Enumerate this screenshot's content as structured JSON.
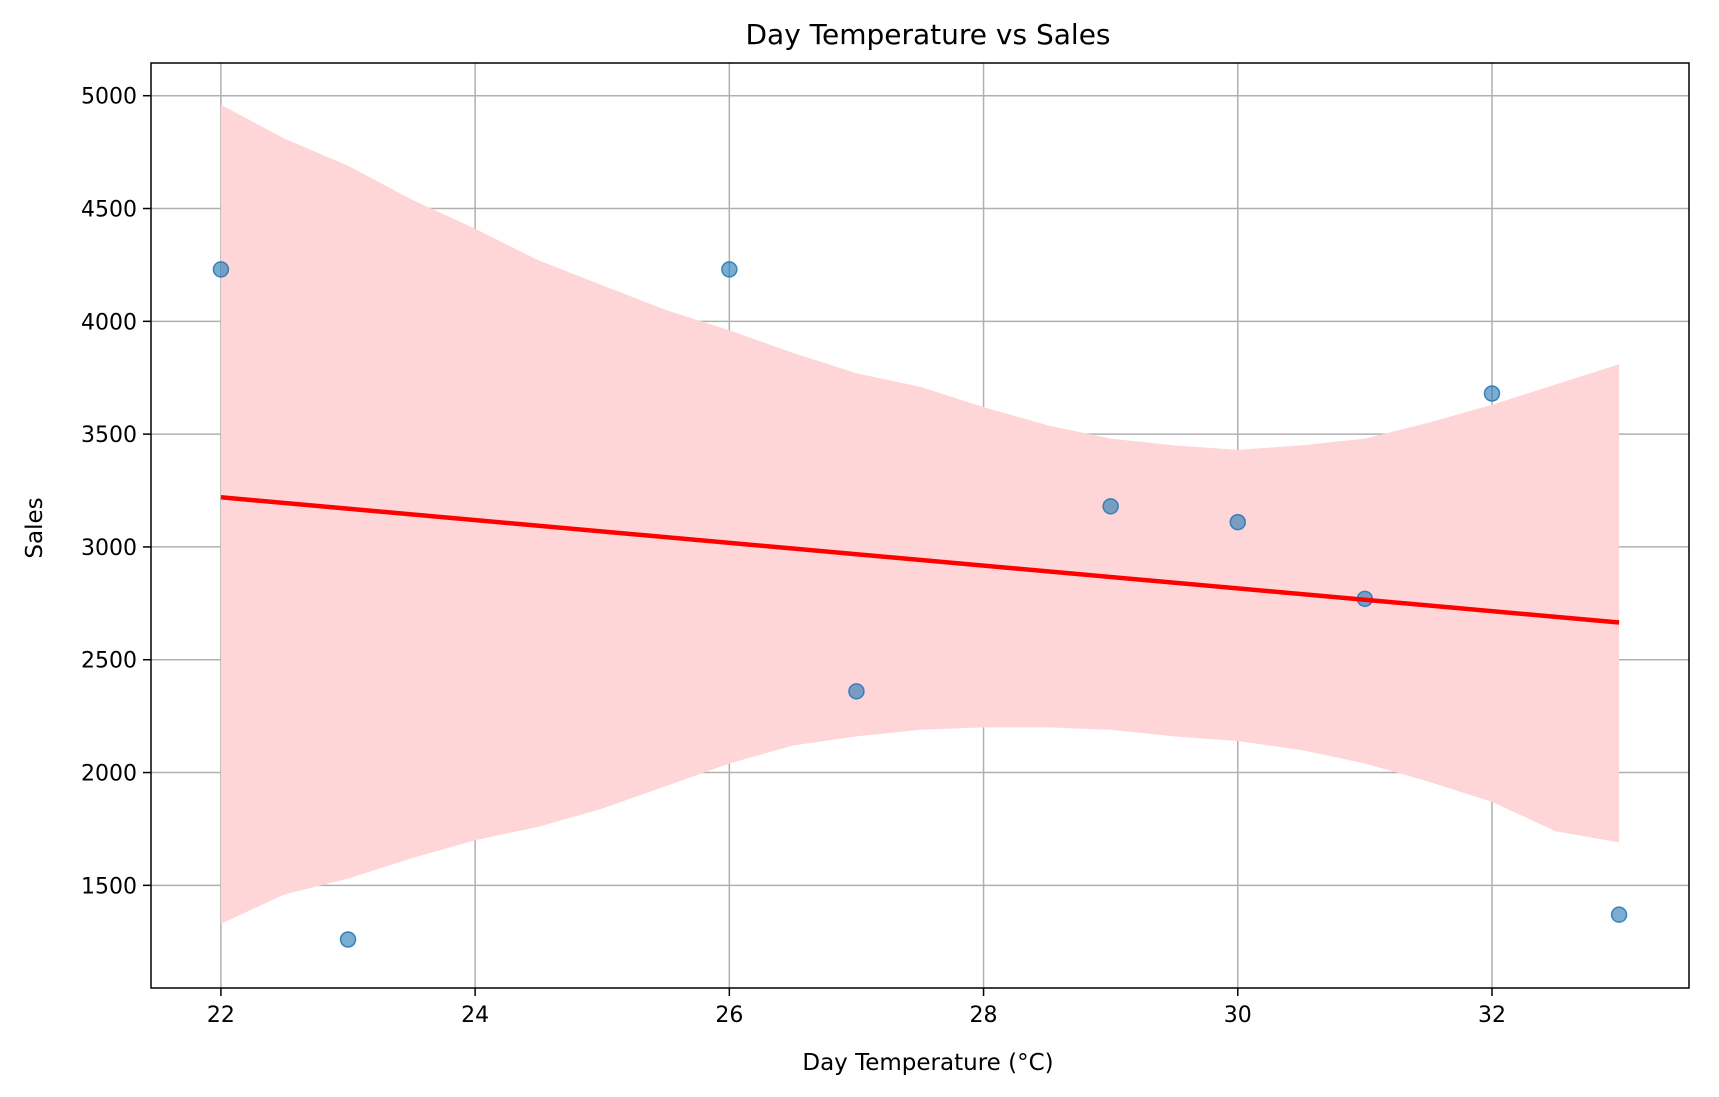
{
  "chart_data": {
    "type": "scatter",
    "title": "Day Temperature vs Sales",
    "xlabel": "Day Temperature (°C)",
    "ylabel": "Sales",
    "xlim": [
      21.45,
      33.55
    ],
    "ylim": [
      1045,
      5145
    ],
    "xticks": [
      22,
      24,
      26,
      28,
      30,
      32
    ],
    "yticks": [
      1500,
      2000,
      2500,
      3000,
      3500,
      4000,
      4500,
      5000
    ],
    "grid": true,
    "points": [
      {
        "x": 22,
        "y": 4230
      },
      {
        "x": 23,
        "y": 1260
      },
      {
        "x": 26,
        "y": 4230
      },
      {
        "x": 27,
        "y": 2360
      },
      {
        "x": 29,
        "y": 3180
      },
      {
        "x": 30,
        "y": 3110
      },
      {
        "x": 31,
        "y": 2770
      },
      {
        "x": 32,
        "y": 3680
      },
      {
        "x": 33,
        "y": 1370
      }
    ],
    "regression": {
      "x": [
        22,
        33
      ],
      "y": [
        3220,
        2665
      ]
    },
    "confidence_band": {
      "x": [
        22,
        22.5,
        23,
        23.5,
        24,
        24.5,
        25,
        25.5,
        26,
        26.5,
        27,
        27.5,
        28,
        28.5,
        29,
        29.5,
        30,
        30.5,
        31,
        31.5,
        32,
        32.5,
        33
      ],
      "upper": [
        4960,
        4810,
        4690,
        4540,
        4410,
        4270,
        4160,
        4050,
        3960,
        3860,
        3770,
        3710,
        3620,
        3540,
        3480,
        3450,
        3430,
        3450,
        3480,
        3550,
        3630,
        3720,
        3810
      ],
      "lower": [
        1330,
        1460,
        1530,
        1620,
        1700,
        1760,
        1840,
        1940,
        2040,
        2120,
        2160,
        2190,
        2200,
        2200,
        2190,
        2160,
        2140,
        2100,
        2040,
        1960,
        1870,
        1740,
        1690
      ]
    },
    "colors": {
      "points": "#1f77b4",
      "regression": "#ff0000",
      "band": "#ffd6d7",
      "grid": "#b0b0b0",
      "axes": "#000000"
    }
  }
}
